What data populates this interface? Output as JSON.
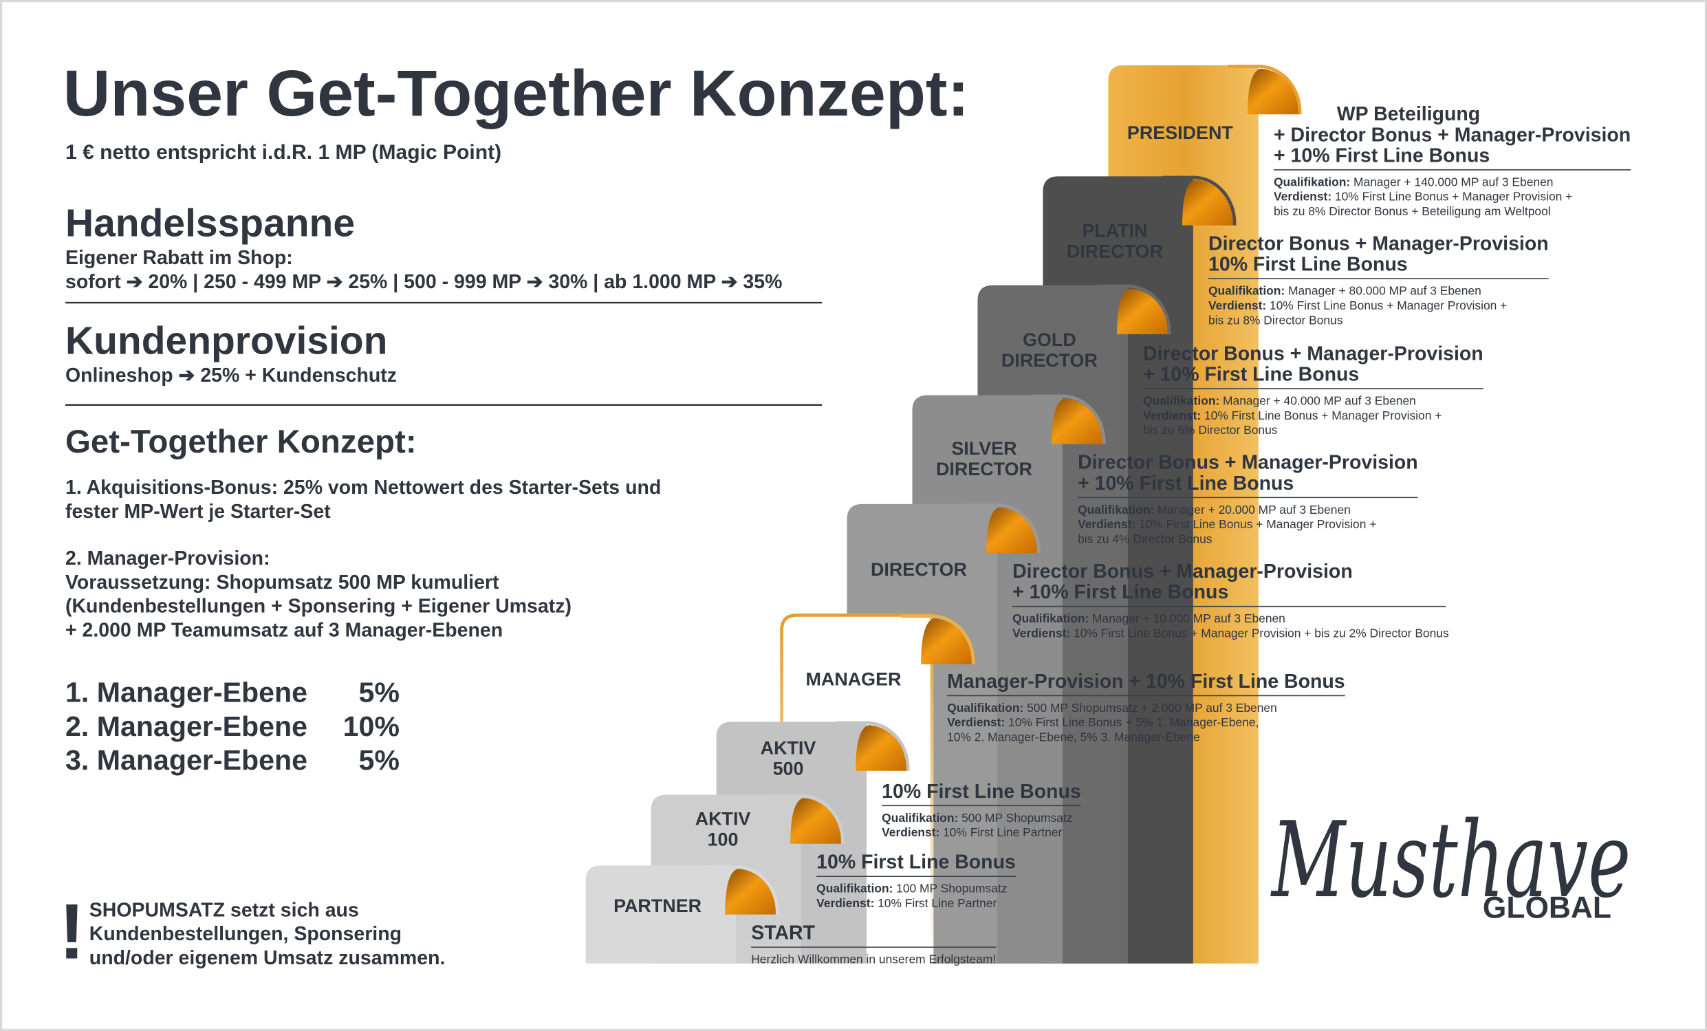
{
  "header": {
    "title": "Unser Get-Together Konzept:",
    "subtitle": "1 € netto entspricht i.d.R. 1 MP (Magic Point)"
  },
  "sections": [
    {
      "heading": "Handelsspanne",
      "lines": [
        "Eigener Rabatt im Shop:",
        "sofort ➔ 20% | 250 - 499 MP ➔ 25% | 500 - 999 MP ➔ 30% | ab 1.000 MP ➔ 35%"
      ]
    },
    {
      "heading": "Kundenprovision",
      "lines": [
        "Onlineshop ➔ 25% + Kundenschutz"
      ]
    },
    {
      "heading": "Get-Together Konzept:",
      "paragraphs": [
        [
          "1. Akquisitions-Bonus: 25% vom Nettowert des Starter-Sets und",
          "fester MP-Wert je Starter-Set"
        ],
        [
          "2. Manager-Provision:",
          "Voraussetzung: Shopumsatz 500 MP kumuliert",
          "(Kundenbestellungen + Sponsering + Eigener Umsatz)",
          "+ 2.000 MP Teamumsatz auf 3 Manager-Ebenen"
        ]
      ]
    }
  ],
  "manager_levels": [
    {
      "label": "1. Manager-Ebene",
      "value": "5%"
    },
    {
      "label": "2. Manager-Ebene",
      "value": "10%"
    },
    {
      "label": "3. Manager-Ebene",
      "value": "5%"
    }
  ],
  "note": {
    "mark": "!",
    "lines": [
      "SHOPUMSATZ setzt sich aus",
      "Kundenbestellungen, Sponsering",
      "und/oder eigenem Umsatz zusammen."
    ]
  },
  "steps": [
    {
      "label": [
        "PARTNER"
      ],
      "title": [
        "START"
      ],
      "details": [
        {
          "text": "Herzlich Willkommen in unserem Erfolgsteam!"
        }
      ]
    },
    {
      "label": [
        "AKTIV",
        "100"
      ],
      "title": [
        "10% First Line Bonus"
      ],
      "details": [
        {
          "key": "Qualifikation:",
          "text": "100 MP Shopumsatz"
        },
        {
          "key": "Verdienst:",
          "text": "10% First Line Partner"
        }
      ]
    },
    {
      "label": [
        "AKTIV",
        "500"
      ],
      "title": [
        "10% First Line Bonus"
      ],
      "details": [
        {
          "key": "Qualifikation:",
          "text": "500 MP Shopumsatz"
        },
        {
          "key": "Verdienst:",
          "text": "10% First Line Partner"
        }
      ]
    },
    {
      "label": [
        "MANAGER"
      ],
      "title": [
        "Manager-Provision + 10% First Line Bonus"
      ],
      "details": [
        {
          "key": "Qualifikation:",
          "text": "500 MP Shopumsatz + 2.000 MP auf 3 Ebenen"
        },
        {
          "key": "Verdienst:",
          "text": "10% First Line Bonus + 5% 1. Manager-Ebene,"
        },
        {
          "text": "10% 2. Manager-Ebene, 5% 3. Manager-Ebene"
        }
      ]
    },
    {
      "label": [
        "DIRECTOR"
      ],
      "title": [
        "Director Bonus + Manager-Provision",
        "+ 10% First Line Bonus"
      ],
      "details": [
        {
          "key": "Qualifikation:",
          "text": "Manager + 10.000 MP auf 3 Ebenen"
        },
        {
          "key": "Verdienst:",
          "text": "10% First Line Bonus + Manager Provision + bis zu 2% Director Bonus"
        }
      ]
    },
    {
      "label": [
        "SILVER",
        "DIRECTOR"
      ],
      "title": [
        "Director Bonus + Manager-Provision",
        "+ 10% First Line Bonus"
      ],
      "details": [
        {
          "key": "Qualifikation:",
          "text": "Manager + 20.000 MP auf 3 Ebenen"
        },
        {
          "key": "Verdienst:",
          "text": "10% First Line Bonus + Manager Provision +"
        },
        {
          "text": "bis zu 4% Director Bonus"
        }
      ]
    },
    {
      "label": [
        "GOLD",
        "DIRECTOR"
      ],
      "title": [
        "Director Bonus + Manager-Provision",
        "+ 10% First Line Bonus"
      ],
      "details": [
        {
          "key": "Qualifikation:",
          "text": "Manager + 40.000 MP auf 3 Ebenen"
        },
        {
          "key": "Verdienst:",
          "text": "10% First Line Bonus + Manager Provision +"
        },
        {
          "text": "bis zu 6% Director Bonus"
        }
      ]
    },
    {
      "label": [
        "PLATIN",
        "DIRECTOR"
      ],
      "title": [
        "Director Bonus + Manager-Provision",
        "10% First Line Bonus"
      ],
      "details": [
        {
          "key": "Qualifikation:",
          "text": "Manager + 80.000 MP auf 3 Ebenen"
        },
        {
          "key": "Verdienst:",
          "text": "10% First Line Bonus + Manager Provision +"
        },
        {
          "text": "bis zu 8% Director Bonus"
        }
      ]
    },
    {
      "label": [
        "PRESIDENT"
      ],
      "title": [
        "WP Beteiligung",
        "+ Director Bonus + Manager-Provision",
        "+ 10% First Line Bonus"
      ],
      "details": [
        {
          "key": "Qualifikation:",
          "text": "Manager + 140.000 MP auf 3 Ebenen"
        },
        {
          "key": "Verdienst:",
          "text": "10% First Line Bonus + Manager Provision +"
        },
        {
          "text": "bis zu 8% Director Bonus + Beteiligung am Weltpool"
        }
      ]
    }
  ],
  "logo": {
    "script": "Musthave",
    "text": "GLOBAL"
  }
}
